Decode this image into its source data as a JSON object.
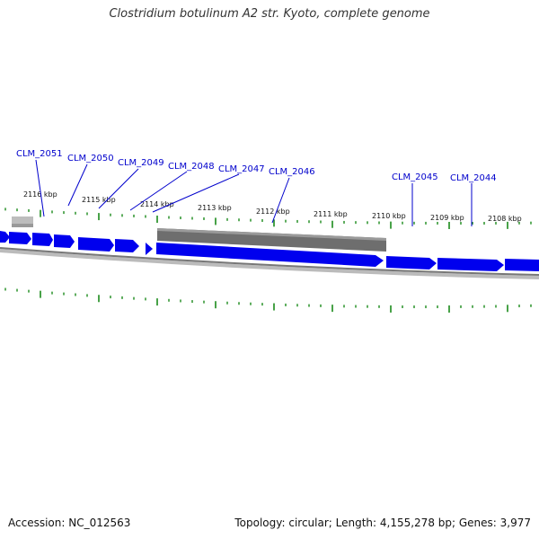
{
  "title": "Clostridium botulinum A2 str. Kyoto, complete genome",
  "footer": {
    "accession": "Accession: NC_012563",
    "summary": "Topology: circular; Length: 4,155,278 bp; Genes: 3,977"
  },
  "kbp_ticks": [
    "2116 kbp",
    "2115 kbp",
    "2114 kbp",
    "2113 kbp",
    "2112 kbp",
    "2111 kbp",
    "2110 kbp",
    "2109 kbp",
    "2108 kbp"
  ],
  "gene_labels": [
    "CLM_2051",
    "CLM_2050",
    "CLM_2049",
    "CLM_2048",
    "CLM_2047",
    "CLM_2046",
    "CLM_2045",
    "CLM_2044"
  ],
  "colors": {
    "forward_gene": "#0000ee",
    "tick": "#1a8a1a",
    "backbone": "#777777",
    "feature_band": "#6e6e6e",
    "label_line": "#0000cc"
  }
}
